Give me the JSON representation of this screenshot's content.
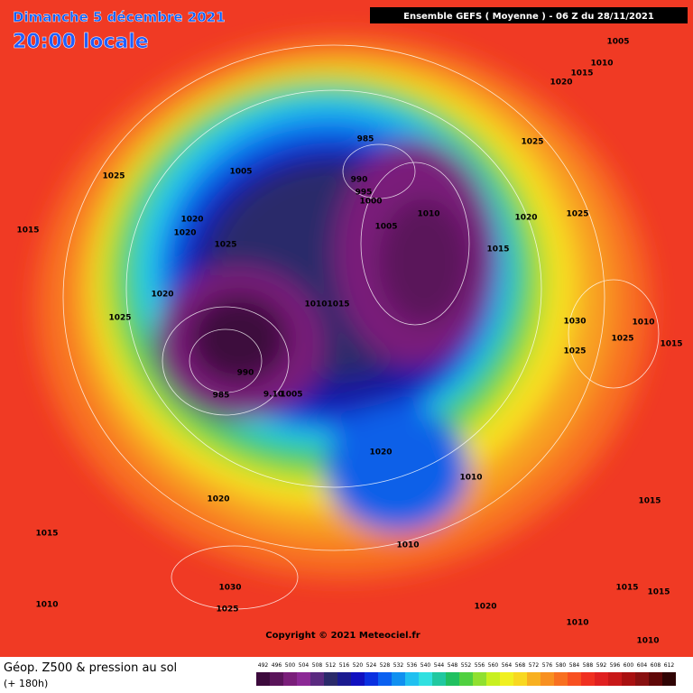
{
  "header": {
    "date": "Dimanche 5 décembre 2021",
    "time": "20:00 locale",
    "run": "Ensemble GEFS  ( Moyenne )  -  06 Z du 28/11/2021"
  },
  "copyright": "Copyright © 2021 Meteociel.fr",
  "footer": {
    "title": "Géop. Z500 & pression au sol",
    "lead": "(+ 180h)"
  },
  "isobars": [
    "1005",
    "1010",
    "1015",
    "1020",
    "985",
    "1025",
    "1025",
    "1005",
    "990",
    "995",
    "1000",
    "1010",
    "1025",
    "1020",
    "1020",
    "1020",
    "1005",
    "1015",
    "1025",
    "1015",
    "1020",
    "1010",
    "1015",
    "1025",
    "1030",
    "1010",
    "1025",
    "1015",
    "1025",
    "990",
    "985",
    "9.10",
    "1005",
    "1020",
    "1010",
    "1020",
    "1015",
    "1015",
    "1010",
    "1030",
    "1015",
    "1015",
    "1010",
    "1025",
    "1020",
    "1010",
    "1010"
  ],
  "legend": {
    "ticks": [
      "492",
      "496",
      "500",
      "504",
      "508",
      "512",
      "516",
      "520",
      "524",
      "528",
      "532",
      "536",
      "540",
      "544",
      "548",
      "552",
      "556",
      "560",
      "564",
      "568",
      "572",
      "576",
      "580",
      "584",
      "588",
      "592",
      "596",
      "600",
      "604",
      "608",
      "612"
    ],
    "colors": [
      "#3c0a3c",
      "#5a145a",
      "#7a1e7a",
      "#8c2896",
      "#5a2a80",
      "#2a2a6a",
      "#1a1a90",
      "#1010c0",
      "#0a30e0",
      "#0a60f0",
      "#1090f0",
      "#20c0f0",
      "#30e0e0",
      "#20c8a0",
      "#20c060",
      "#50d040",
      "#90e030",
      "#c8f020",
      "#f0f020",
      "#f8d820",
      "#f8b020",
      "#f89020",
      "#f87020",
      "#f85020",
      "#f03020",
      "#e02020",
      "#c81818",
      "#a81010",
      "#881010",
      "#600808",
      "#300404"
    ]
  }
}
